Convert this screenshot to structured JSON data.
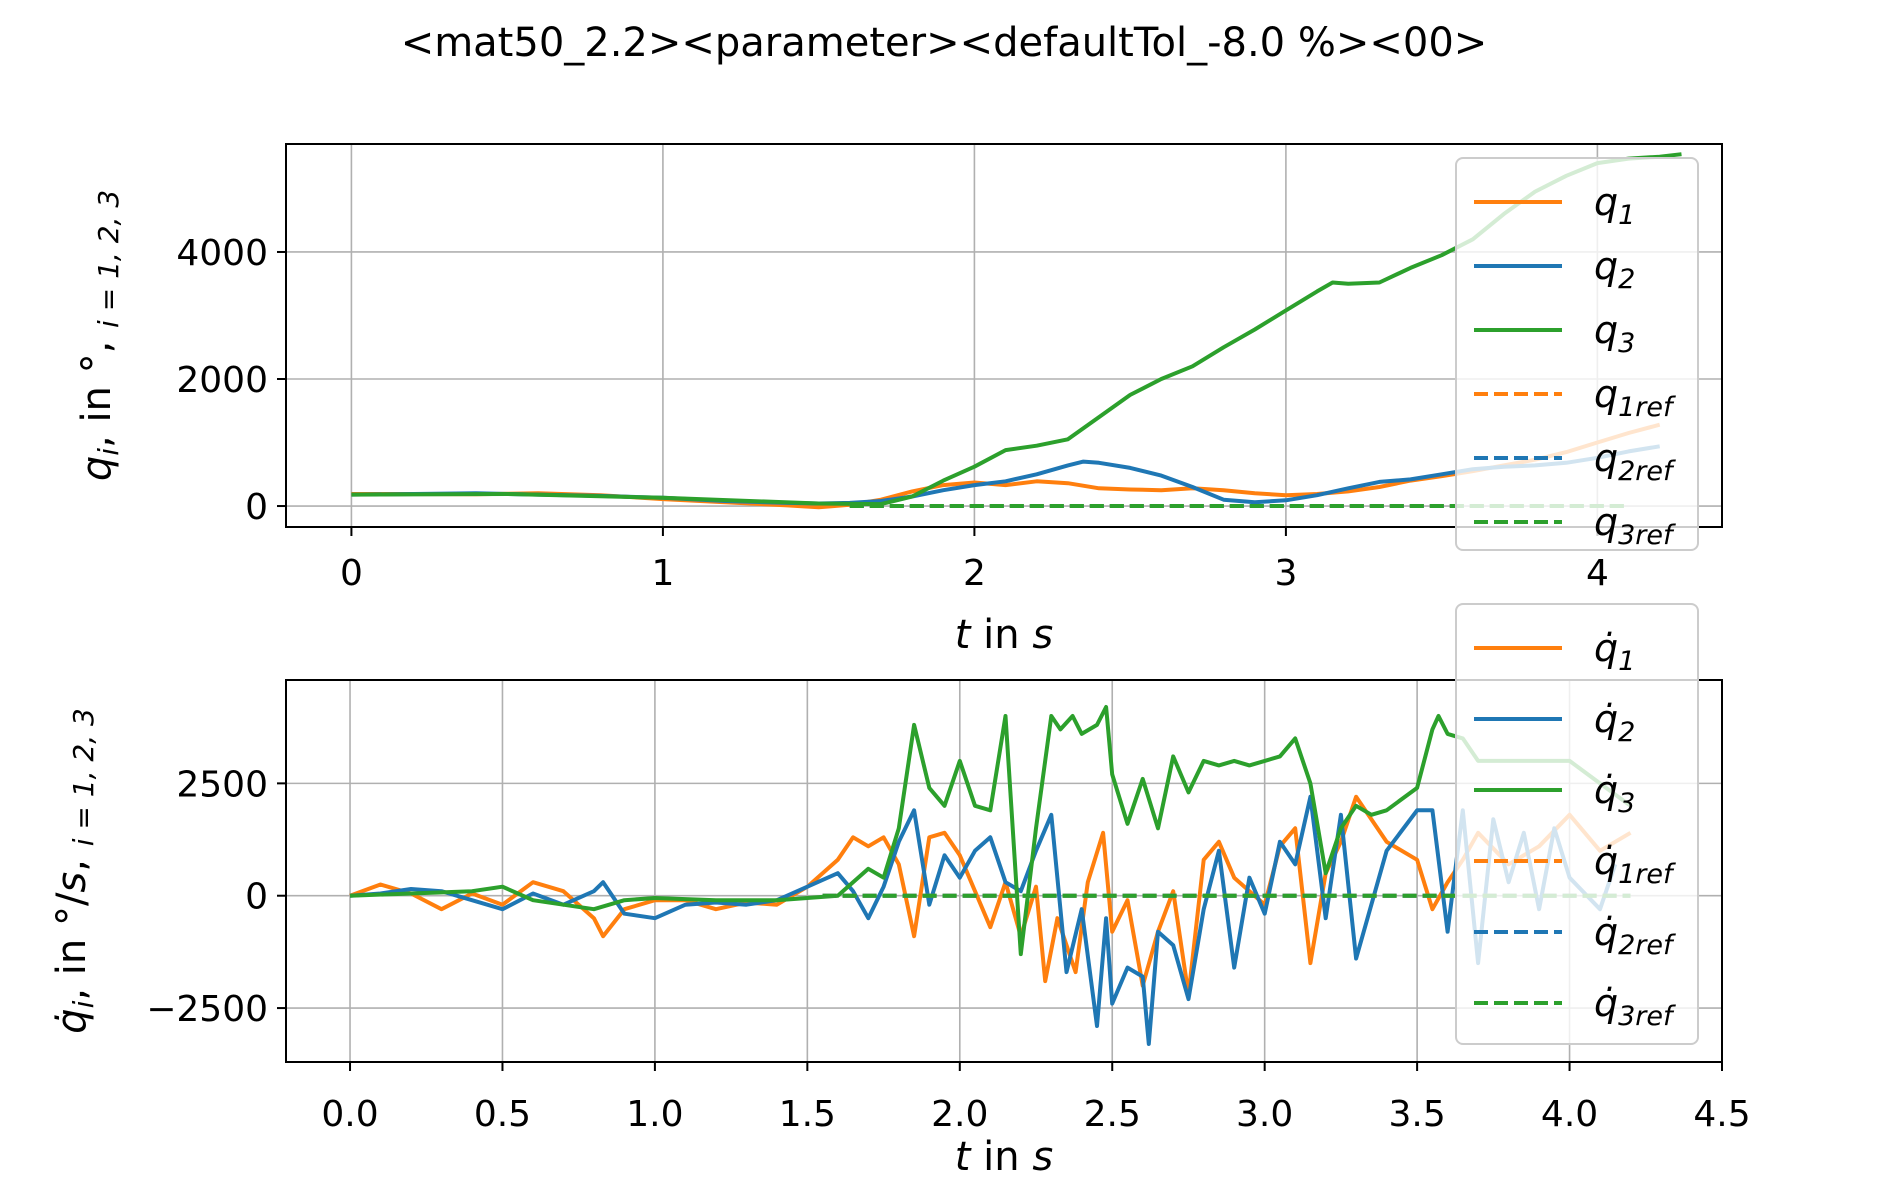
{
  "title": "<mat50_2.2><parameter><defaultTol_-8.0 %><00>",
  "colors": {
    "q1": "#ff7f0e",
    "q2": "#1f77b4",
    "q3": "#2ca02c",
    "grid": "#b0b0b0"
  },
  "chart_data": [
    {
      "type": "line",
      "xlabel": {
        "var": "t",
        "rest": " in ",
        "unit": "s"
      },
      "ylabel": {
        "sym": "q",
        "sub": "i",
        "rest": ",  in °,  ",
        "tail": "i = 1, 2, 3"
      },
      "xlim": [
        -0.21,
        4.4
      ],
      "ylim": [
        -330,
        5700
      ],
      "xticks": [
        0,
        1,
        2,
        3,
        4
      ],
      "xtick_labels": [
        "0",
        "1",
        "2",
        "3",
        "4"
      ],
      "yticks": [
        0,
        2000,
        4000
      ],
      "ytick_labels": [
        "0",
        "2000",
        "4000"
      ],
      "grid": true,
      "legend_position": "upper right",
      "series": [
        {
          "name": "q",
          "sub": "1",
          "color": "#ff7f0e",
          "dashed": false,
          "x": [
            0,
            0.2,
            0.4,
            0.6,
            0.8,
            1.0,
            1.2,
            1.4,
            1.5,
            1.6,
            1.7,
            1.8,
            1.9,
            2.0,
            2.1,
            2.2,
            2.3,
            2.4,
            2.5,
            2.6,
            2.7,
            2.8,
            2.9,
            3.0,
            3.1,
            3.2,
            3.3,
            3.4,
            3.5,
            3.6,
            3.7,
            3.8,
            3.9,
            4.0,
            4.1,
            4.2
          ],
          "y": [
            190,
            190,
            185,
            200,
            170,
            110,
            60,
            10,
            -20,
            20,
            100,
            230,
            330,
            370,
            330,
            390,
            360,
            280,
            260,
            250,
            280,
            250,
            200,
            170,
            190,
            230,
            300,
            400,
            470,
            550,
            640,
            730,
            850,
            1000,
            1150,
            1280
          ]
        },
        {
          "name": "q",
          "sub": "2",
          "color": "#1f77b4",
          "dashed": false,
          "x": [
            0,
            0.2,
            0.4,
            0.6,
            0.8,
            1.0,
            1.2,
            1.4,
            1.5,
            1.6,
            1.7,
            1.8,
            1.9,
            2.0,
            2.1,
            2.2,
            2.3,
            2.35,
            2.4,
            2.5,
            2.6,
            2.7,
            2.8,
            2.9,
            3.0,
            3.1,
            3.2,
            3.3,
            3.4,
            3.5,
            3.6,
            3.7,
            3.8,
            3.9,
            4.0,
            4.1,
            4.2
          ],
          "y": [
            180,
            190,
            200,
            180,
            160,
            130,
            80,
            50,
            40,
            50,
            80,
            150,
            250,
            330,
            390,
            500,
            640,
            700,
            680,
            600,
            480,
            300,
            100,
            60,
            90,
            170,
            280,
            380,
            420,
            500,
            580,
            620,
            640,
            680,
            760,
            860,
            940
          ]
        },
        {
          "name": "q",
          "sub": "3",
          "color": "#2ca02c",
          "dashed": false,
          "x": [
            0,
            0.5,
            1.0,
            1.5,
            1.7,
            1.8,
            1.9,
            2.0,
            2.1,
            2.2,
            2.3,
            2.4,
            2.5,
            2.6,
            2.7,
            2.8,
            2.9,
            3.0,
            3.1,
            3.15,
            3.2,
            3.3,
            3.4,
            3.5,
            3.6,
            3.7,
            3.8,
            3.9,
            4.0,
            4.1,
            4.2,
            4.27
          ],
          "y": [
            180,
            190,
            130,
            40,
            30,
            150,
            400,
            620,
            880,
            950,
            1050,
            1400,
            1750,
            2000,
            2200,
            2500,
            2780,
            3080,
            3380,
            3520,
            3500,
            3520,
            3750,
            3950,
            4200,
            4600,
            4950,
            5200,
            5400,
            5470,
            5500,
            5540
          ]
        },
        {
          "name": "q",
          "sub": "1ref",
          "color": "#ff7f0e",
          "dashed": true,
          "x": [
            1.6,
            4.1
          ],
          "y": [
            0,
            0
          ]
        },
        {
          "name": "q",
          "sub": "2ref",
          "color": "#1f77b4",
          "dashed": true,
          "x": [
            1.6,
            4.1
          ],
          "y": [
            0,
            0
          ]
        },
        {
          "name": "q",
          "sub": "3ref",
          "color": "#2ca02c",
          "dashed": true,
          "x": [
            1.6,
            4.1
          ],
          "y": [
            0,
            0
          ]
        }
      ]
    },
    {
      "type": "line",
      "xlabel": {
        "var": "t",
        "rest": " in ",
        "unit": "s"
      },
      "ylabel": {
        "sym": "q̇",
        "sub": "i",
        "rest": ", in °/",
        "unit": "s",
        "sep": ",  ",
        "tail": "i = 1, 2, 3"
      },
      "xlim": [
        -0.21,
        4.5
      ],
      "ylim": [
        -3700,
        4800
      ],
      "xticks": [
        0.0,
        0.5,
        1.0,
        1.5,
        2.0,
        2.5,
        3.0,
        3.5,
        4.0,
        4.5
      ],
      "xtick_labels": [
        "0.0",
        "0.5",
        "1.0",
        "1.5",
        "2.0",
        "2.5",
        "3.0",
        "3.5",
        "4.0",
        "4.5"
      ],
      "yticks": [
        -2500,
        0,
        2500
      ],
      "ytick_labels": [
        "−2500",
        "0",
        "2500"
      ],
      "grid": true,
      "legend_position": "upper right",
      "series": [
        {
          "name": "q̇",
          "sub": "1",
          "color": "#ff7f0e",
          "dashed": false,
          "x": [
            0,
            0.1,
            0.2,
            0.3,
            0.4,
            0.5,
            0.6,
            0.7,
            0.8,
            0.83,
            0.9,
            1.0,
            1.1,
            1.2,
            1.3,
            1.4,
            1.5,
            1.6,
            1.65,
            1.7,
            1.75,
            1.8,
            1.85,
            1.9,
            1.95,
            2.0,
            2.1,
            2.15,
            2.2,
            2.25,
            2.28,
            2.32,
            2.38,
            2.42,
            2.47,
            2.5,
            2.55,
            2.6,
            2.65,
            2.7,
            2.75,
            2.8,
            2.85,
            2.9,
            3.0,
            3.05,
            3.1,
            3.15,
            3.2,
            3.25,
            3.3,
            3.4,
            3.5,
            3.55,
            3.6,
            3.65,
            3.7,
            3.8,
            3.9,
            4.0,
            4.1,
            4.2
          ],
          "y": [
            0,
            250,
            50,
            -300,
            50,
            -200,
            300,
            100,
            -500,
            -900,
            -300,
            -100,
            -100,
            -300,
            -150,
            -200,
            200,
            800,
            1300,
            1100,
            1300,
            700,
            -900,
            1300,
            1400,
            900,
            -700,
            300,
            -900,
            200,
            -1900,
            -500,
            -1700,
            300,
            1400,
            -800,
            -100,
            -2000,
            -800,
            100,
            -2200,
            800,
            1200,
            400,
            -200,
            1100,
            1500,
            -1500,
            500,
            1200,
            2200,
            1200,
            800,
            -300,
            300,
            800,
            1400,
            700,
            1100,
            1800,
            1000,
            1400
          ]
        },
        {
          "name": "q̇",
          "sub": "2",
          "color": "#1f77b4",
          "dashed": false,
          "x": [
            0,
            0.1,
            0.2,
            0.3,
            0.4,
            0.5,
            0.6,
            0.7,
            0.8,
            0.83,
            0.9,
            1.0,
            1.1,
            1.2,
            1.3,
            1.4,
            1.5,
            1.6,
            1.65,
            1.7,
            1.75,
            1.8,
            1.85,
            1.9,
            1.95,
            2.0,
            2.05,
            2.1,
            2.15,
            2.2,
            2.25,
            2.3,
            2.35,
            2.4,
            2.45,
            2.48,
            2.5,
            2.55,
            2.6,
            2.62,
            2.65,
            2.7,
            2.75,
            2.8,
            2.85,
            2.9,
            2.95,
            3.0,
            3.05,
            3.1,
            3.15,
            3.2,
            3.25,
            3.3,
            3.4,
            3.5,
            3.55,
            3.6,
            3.65,
            3.7,
            3.75,
            3.8,
            3.85,
            3.9,
            3.95,
            4.0,
            4.1,
            4.15
          ],
          "y": [
            0,
            50,
            150,
            100,
            -100,
            -300,
            50,
            -200,
            100,
            300,
            -400,
            -500,
            -200,
            -150,
            -200,
            -100,
            200,
            500,
            100,
            -500,
            200,
            1200,
            1900,
            -200,
            900,
            400,
            1000,
            1300,
            300,
            100,
            1000,
            1800,
            -1700,
            -300,
            -2900,
            -500,
            -2400,
            -1600,
            -1800,
            -3300,
            -800,
            -1100,
            -2300,
            -300,
            1000,
            -1600,
            400,
            -400,
            1200,
            700,
            2200,
            -500,
            1800,
            -1400,
            1000,
            1900,
            1900,
            -800,
            1900,
            -1500,
            1700,
            300,
            1400,
            -300,
            1500,
            400,
            -300,
            700
          ]
        },
        {
          "name": "q̇",
          "sub": "3",
          "color": "#2ca02c",
          "dashed": false,
          "x": [
            0,
            0.2,
            0.4,
            0.5,
            0.6,
            0.7,
            0.8,
            0.9,
            1.0,
            1.2,
            1.4,
            1.6,
            1.7,
            1.75,
            1.8,
            1.85,
            1.9,
            1.95,
            2.0,
            2.05,
            2.1,
            2.15,
            2.2,
            2.25,
            2.3,
            2.33,
            2.37,
            2.4,
            2.45,
            2.48,
            2.5,
            2.55,
            2.6,
            2.65,
            2.7,
            2.75,
            2.8,
            2.85,
            2.9,
            2.95,
            3.0,
            3.05,
            3.1,
            3.15,
            3.2,
            3.25,
            3.3,
            3.35,
            3.4,
            3.5,
            3.55,
            3.57,
            3.6,
            3.65,
            3.7,
            3.8,
            3.9,
            4.0,
            4.1,
            4.2
          ],
          "y": [
            0,
            50,
            100,
            200,
            -100,
            -200,
            -300,
            -100,
            -50,
            -100,
            -100,
            0,
            600,
            400,
            1500,
            3800,
            2400,
            2000,
            3000,
            2000,
            1900,
            4000,
            -1300,
            1500,
            4000,
            3700,
            4000,
            3600,
            3800,
            4200,
            2700,
            1600,
            2600,
            1500,
            3100,
            2300,
            3000,
            2900,
            3000,
            2900,
            3000,
            3100,
            3500,
            2500,
            500,
            1500,
            2000,
            1800,
            1900,
            2400,
            3700,
            4000,
            3600,
            3500,
            3000,
            3000,
            3000,
            3000,
            2500,
            2000
          ]
        },
        {
          "name": "q̇",
          "sub": "1ref",
          "color": "#ff7f0e",
          "dashed": true,
          "x": [
            1.55,
            4.2
          ],
          "y": [
            0,
            0
          ]
        },
        {
          "name": "q̇",
          "sub": "2ref",
          "color": "#1f77b4",
          "dashed": true,
          "x": [
            1.55,
            4.2
          ],
          "y": [
            0,
            0
          ]
        },
        {
          "name": "q̇",
          "sub": "3ref",
          "color": "#2ca02c",
          "dashed": true,
          "x": [
            1.55,
            4.2
          ],
          "y": [
            0,
            0
          ]
        }
      ]
    }
  ]
}
